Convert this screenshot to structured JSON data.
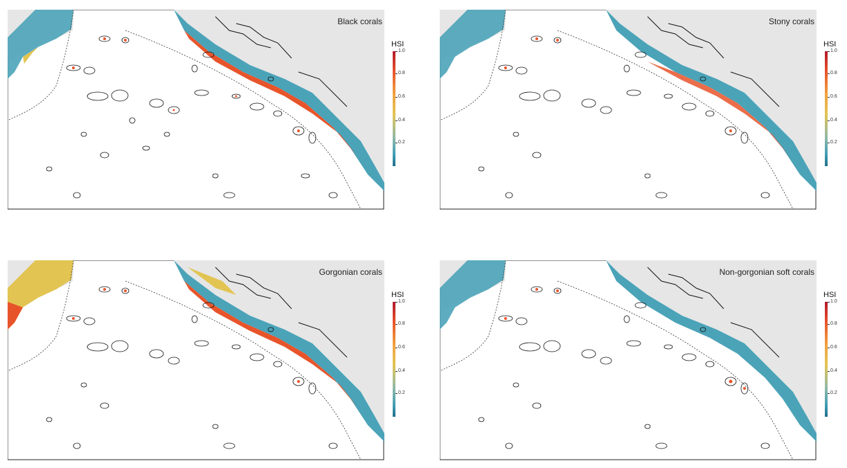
{
  "panels": [
    {
      "title": "Black corals"
    },
    {
      "title": "Stony corals"
    },
    {
      "title": "Gorgonian corals"
    },
    {
      "title": "Non-gorgonian soft corals"
    }
  ],
  "legend": {
    "title": "HSI",
    "ticks": [
      "1.0",
      "0.8",
      "0.6",
      "0.4",
      "0.2"
    ]
  },
  "colors": {
    "land": "#e6e6e6",
    "shelf_low": "#4ba3b8",
    "shelf_high": "#e8542a",
    "mid": "#e2c452",
    "boundary": "#333333"
  }
}
